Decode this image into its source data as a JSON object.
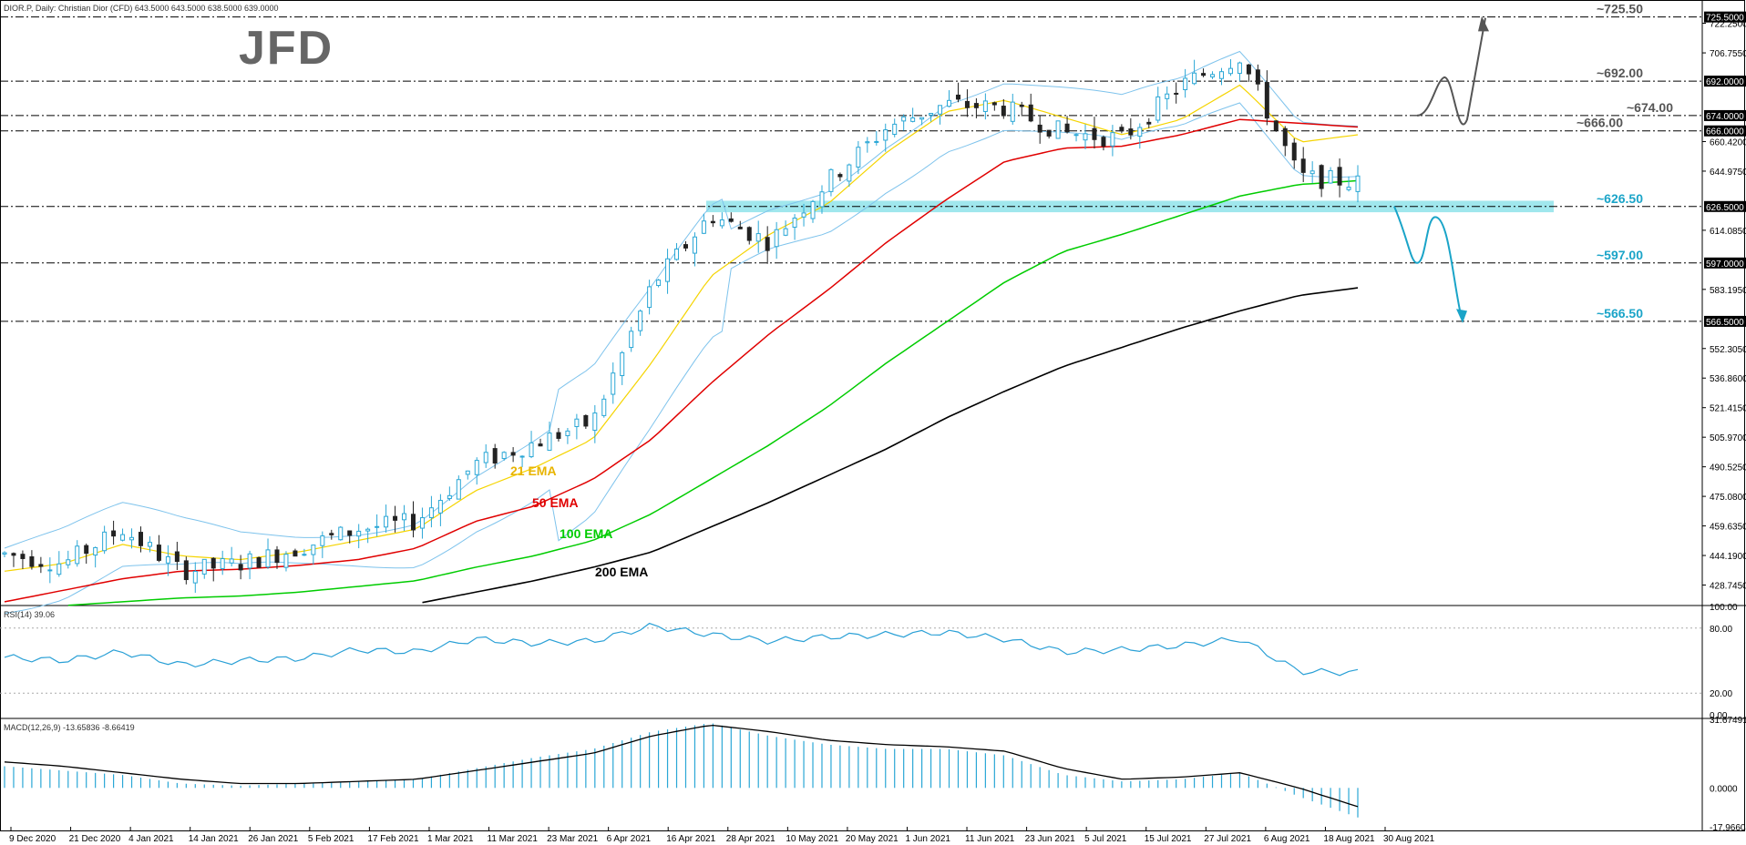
{
  "header": {
    "info": "DIOR.P, Daily:  Christian Dior (CFD)  643.5000 643.5000 638.5000 639.0000",
    "logo": "JFD"
  },
  "colors": {
    "bull": "#2aa7d6",
    "bear": "#222222",
    "ema21": "#f5d400",
    "ema50": "#e00000",
    "ema100": "#00cc00",
    "ema200": "#000000",
    "bb": "#7ec3ec",
    "zone": "#8fe3ea",
    "rsi": "#2aa0d6",
    "macd_hist": "#2aa7d6",
    "macd_signal": "#000000",
    "level_blue": "#1aa4c8",
    "level_gray": "#555555"
  },
  "price_axis": {
    "ylim": [
      419,
      732
    ],
    "ticks": [
      "722.2500",
      "706.7550",
      "660.4200",
      "644.9750",
      "614.0850",
      "583.1950",
      "552.3050",
      "536.8600",
      "521.4150",
      "505.9700",
      "490.5250",
      "475.0800",
      "459.6350",
      "444.1900",
      "428.7450"
    ],
    "flag_labels": [
      "725.5000",
      "692.0000",
      "674.0000",
      "666.0000",
      "626.5000",
      "597.0000",
      "566.5000"
    ]
  },
  "levels": [
    {
      "value": 725.5,
      "label": "~725.50",
      "color": "gray"
    },
    {
      "value": 692.0,
      "label": "~692.00",
      "color": "gray"
    },
    {
      "value": 674.0,
      "label": "~674.00",
      "color": "gray"
    },
    {
      "value": 666.0,
      "label": "~666.00",
      "color": "gray"
    },
    {
      "value": 626.5,
      "label": "~626.50",
      "color": "blue"
    },
    {
      "value": 597.0,
      "label": "~597.00",
      "color": "blue"
    },
    {
      "value": 566.5,
      "label": "~566.50",
      "color": "blue"
    }
  ],
  "ema_labels": {
    "ema21": "21 EMA",
    "ema50": "50 EMA",
    "ema100": "100 EMA",
    "ema200": "200 EMA"
  },
  "rsi": {
    "title": "RSI(14) 39.06",
    "ticks": [
      "100.00",
      "80.00",
      "20.00",
      "0.00"
    ]
  },
  "macd": {
    "title": "MACD(12,26,9) -13.65836 -8.66419",
    "ticks": [
      "31.67491",
      "0.0000",
      "-17.96604"
    ]
  },
  "x_axis": {
    "labels": [
      "9 Dec 2020",
      "21 Dec 2020",
      "4 Jan 2021",
      "14 Jan 2021",
      "26 Jan 2021",
      "5 Feb 2021",
      "17 Feb 2021",
      "1 Mar 2021",
      "11 Mar 2021",
      "23 Mar 2021",
      "6 Apr 2021",
      "16 Apr 2021",
      "28 Apr 2021",
      "10 May 2021",
      "20 May 2021",
      "1 Jun 2021",
      "11 Jun 2021",
      "23 Jun 2021",
      "5 Jul 2021",
      "15 Jul 2021",
      "27 Jul 2021",
      "6 Aug 2021",
      "18 Aug 2021",
      "30 Aug 2021"
    ]
  },
  "chart_data": {
    "type": "line",
    "title": "DIOR.P, Daily:  Christian Dior (CFD)",
    "x": [
      "9 Dec 2020",
      "21 Dec 2020",
      "4 Jan 2021",
      "14 Jan 2021",
      "26 Jan 2021",
      "5 Feb 2021",
      "17 Feb 2021",
      "1 Mar 2021",
      "11 Mar 2021",
      "23 Mar 2021",
      "6 Apr 2021",
      "16 Apr 2021",
      "28 Apr 2021",
      "10 May 2021",
      "20 May 2021",
      "1 Jun 2021",
      "11 Jun 2021",
      "23 Jun 2021",
      "5 Jul 2021",
      "15 Jul 2021",
      "27 Jul 2021",
      "6 Aug 2021",
      "18 Aug 2021",
      "30 Aug 2021"
    ],
    "series": [
      {
        "name": "price",
        "values": [
          445,
          440,
          458,
          436,
          440,
          448,
          458,
          462,
          492,
          503,
          514,
          585,
          622,
          608,
          640,
          668,
          680,
          678,
          665,
          662,
          690,
          705,
          642,
          639
        ]
      },
      {
        "name": "21 EMA",
        "values": [
          436,
          440,
          450,
          444,
          442,
          446,
          452,
          458,
          478,
          490,
          505,
          545,
          590,
          612,
          628,
          655,
          676,
          682,
          673,
          664,
          672,
          690,
          660,
          664
        ]
      },
      {
        "name": "50 EMA",
        "values": [
          420,
          426,
          432,
          436,
          437,
          439,
          442,
          448,
          462,
          470,
          484,
          505,
          534,
          560,
          583,
          608,
          630,
          650,
          657,
          658,
          664,
          672,
          670,
          668
        ]
      },
      {
        "name": "100 EMA",
        "values": [
          null,
          418,
          420,
          422,
          423,
          425,
          428,
          431,
          438,
          444,
          452,
          466,
          484,
          502,
          522,
          545,
          566,
          587,
          603,
          612,
          622,
          632,
          638,
          640
        ]
      },
      {
        "name": "200 EMA",
        "values": [
          null,
          null,
          null,
          null,
          null,
          null,
          null,
          419,
          425,
          431,
          438,
          446,
          459,
          472,
          486,
          500,
          516,
          530,
          543,
          553,
          563,
          572,
          580,
          584
        ]
      }
    ],
    "levels": [
      725.5,
      692.0,
      674.0,
      666.0,
      626.5,
      597.0,
      566.5
    ],
    "ylim": [
      419,
      732
    ],
    "rsi": [
      53,
      50,
      58,
      46,
      50,
      52,
      60,
      58,
      70,
      66,
      68,
      82,
      74,
      68,
      72,
      74,
      76,
      70,
      58,
      60,
      64,
      70,
      40,
      39
    ],
    "macd_line": [
      10,
      8,
      6,
      2,
      1,
      2,
      3,
      4,
      9,
      14,
      18,
      26,
      30,
      24,
      20,
      18,
      18,
      15,
      6,
      3,
      4,
      7,
      -4,
      -13.66
    ],
    "macd_signal": [
      12,
      10,
      7,
      4,
      2,
      2,
      3,
      4,
      8,
      12,
      16,
      24,
      29,
      26,
      22,
      20,
      19,
      17,
      9,
      4,
      5,
      7,
      0,
      -8.66
    ]
  }
}
